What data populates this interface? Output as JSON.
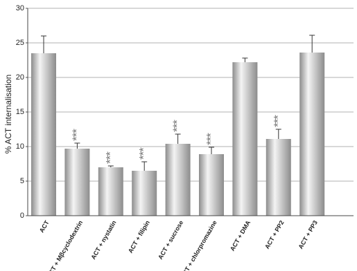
{
  "chart_data": {
    "type": "bar",
    "y_label": "% ACT internalisation",
    "categories": [
      "ACT",
      "ACT + Mβcyclodextrin",
      "ACT + nystatin",
      "ACT + filipin",
      "ACT + sucrose",
      "ACT + chlorpromazine",
      "ACT + DMA",
      "ACT + PP2",
      "ACT + PP3"
    ],
    "values": [
      23.5,
      9.7,
      7.0,
      6.5,
      10.4,
      8.9,
      22.2,
      11.1,
      23.6
    ],
    "errors": [
      2.5,
      0.8,
      0.2,
      1.3,
      1.4,
      1.0,
      0.6,
      1.4,
      2.5
    ],
    "annotations": [
      null,
      "***",
      "***",
      "***",
      "***",
      "***",
      null,
      "***",
      null
    ],
    "color": "#8c8c8c",
    "ylim": [
      0,
      30
    ],
    "yticks": [
      0,
      5,
      10,
      15,
      20,
      25,
      30
    ],
    "grid": true
  }
}
